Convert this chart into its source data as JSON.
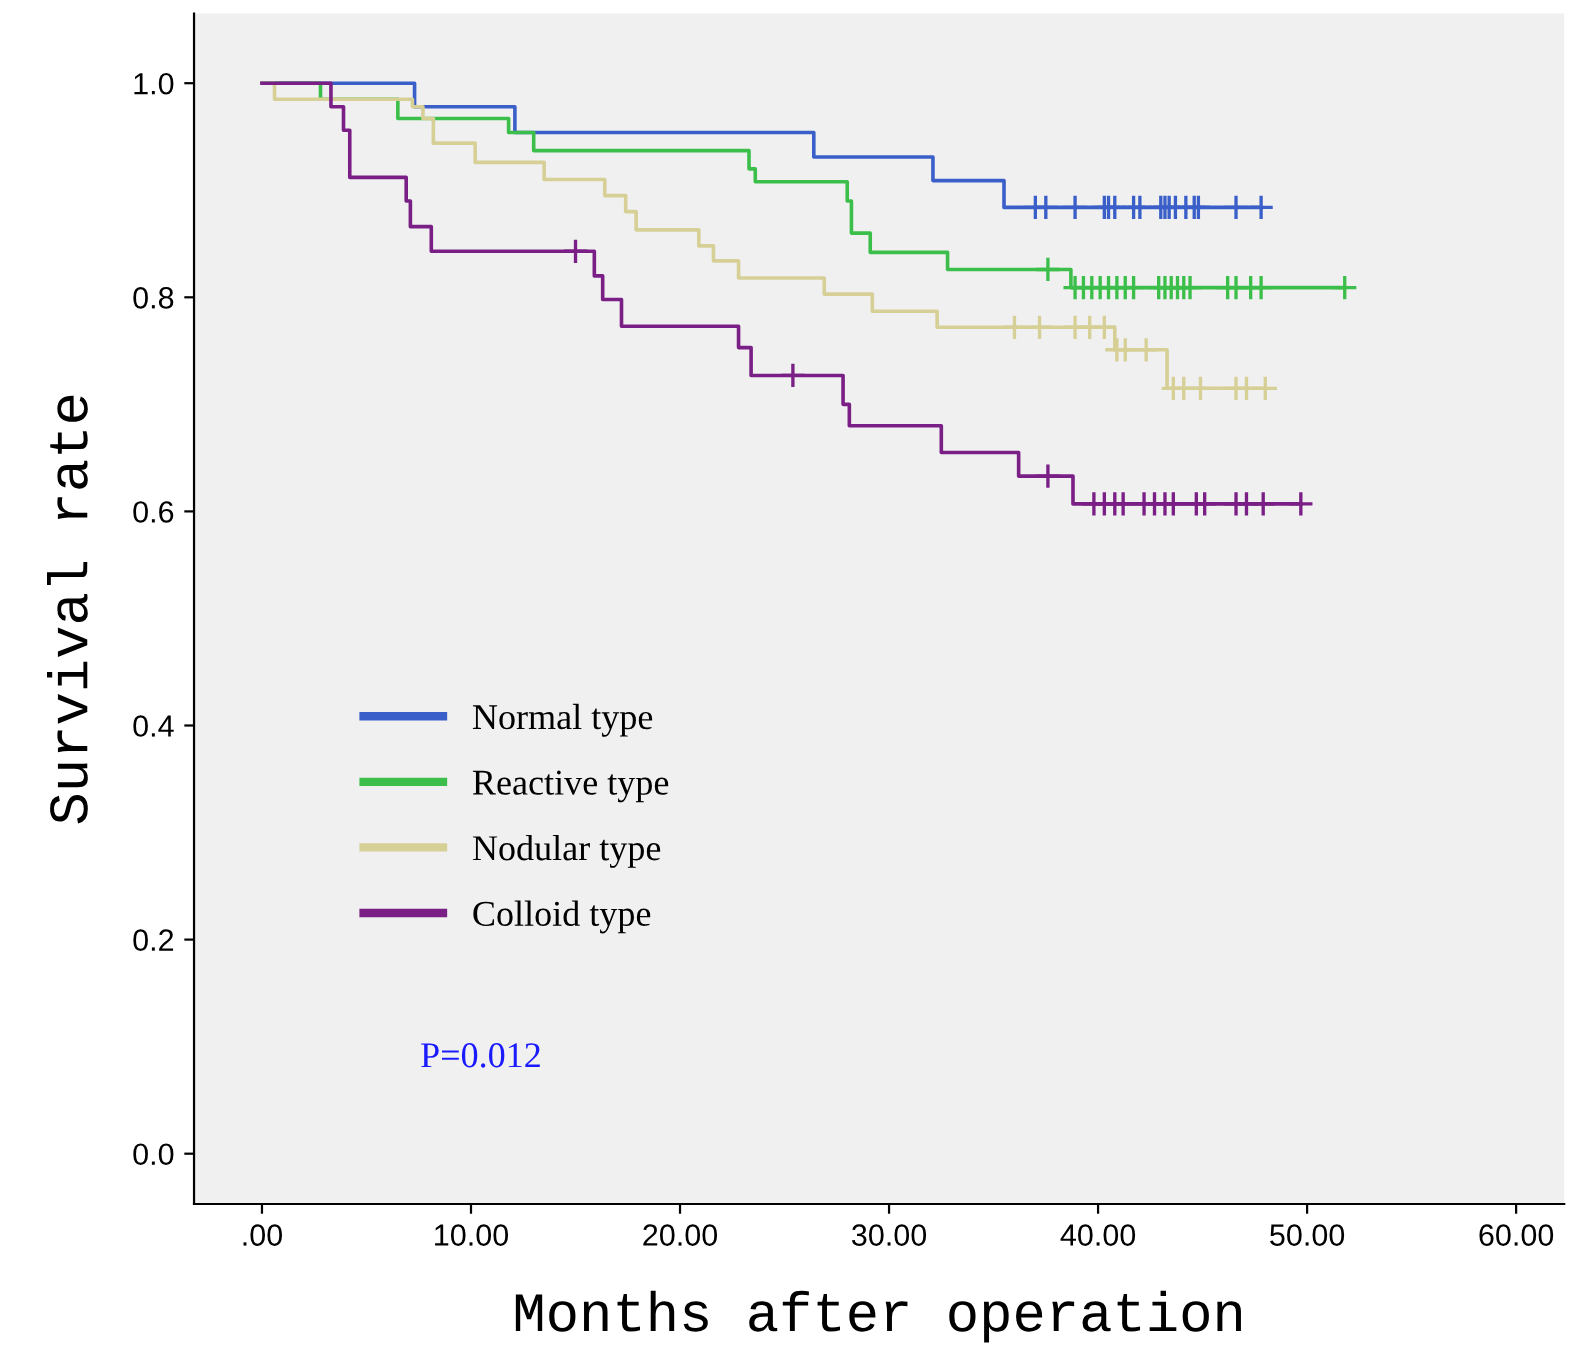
{
  "chart_data": {
    "type": "step",
    "xlabel": "Months after operation",
    "ylabel": "Survival rate",
    "xlim": [
      -3.25,
      62.3
    ],
    "ylim": [
      -0.047,
      1.065
    ],
    "xticks": [
      {
        "value": 0,
        "label": ".00"
      },
      {
        "value": 10,
        "label": "10.00"
      },
      {
        "value": 20,
        "label": "20.00"
      },
      {
        "value": 30,
        "label": "30.00"
      },
      {
        "value": 40,
        "label": "40.00"
      },
      {
        "value": 50,
        "label": "50.00"
      },
      {
        "value": 60,
        "label": "60.00"
      }
    ],
    "yticks": [
      {
        "value": 0,
        "label": "0.0"
      },
      {
        "value": 0.2,
        "label": "0.2"
      },
      {
        "value": 0.4,
        "label": "0.4"
      },
      {
        "value": 0.6,
        "label": "0.6"
      },
      {
        "value": 0.8,
        "label": "0.8"
      },
      {
        "value": 1.0,
        "label": "1.0"
      }
    ],
    "grid": false,
    "legend": "bottom left",
    "marker": "none",
    "line_style": "solid",
    "annotations": [
      "P=0.012"
    ],
    "series": [
      {
        "name": "Normal type",
        "color": "#3a5fc8",
        "x": [
          0,
          7.3,
          12.1,
          26.4,
          32.1,
          35.5,
          47.8
        ],
        "values": [
          1.0,
          0.978,
          0.954,
          0.931,
          0.909,
          0.884,
          0.884
        ]
      },
      {
        "name": "Reactive type",
        "color": "#3cbf4a",
        "x": [
          0,
          2.8,
          6.5,
          11.8,
          13.0,
          23.3,
          23.6,
          28.0,
          28.2,
          29.1,
          32.8,
          38.7,
          51.8
        ],
        "values": [
          1.0,
          0.985,
          0.967,
          0.954,
          0.937,
          0.92,
          0.908,
          0.89,
          0.86,
          0.842,
          0.826,
          0.809,
          0.809
        ]
      },
      {
        "name": "Nodular type",
        "color": "#d6cf96",
        "x": [
          0,
          0.6,
          7.2,
          7.7,
          8.2,
          10.2,
          13.5,
          16.4,
          17.4,
          17.9,
          20.9,
          21.6,
          22.8,
          26.9,
          29.2,
          32.3,
          40.8,
          43.3,
          48.0
        ],
        "values": [
          1.0,
          0.985,
          0.978,
          0.967,
          0.944,
          0.926,
          0.91,
          0.895,
          0.88,
          0.863,
          0.848,
          0.834,
          0.818,
          0.803,
          0.787,
          0.772,
          0.751,
          0.715,
          0.715
        ]
      },
      {
        "name": "Colloid type",
        "color": "#7a1f86",
        "x": [
          0,
          3.3,
          3.9,
          4.2,
          6.9,
          7.1,
          8.1,
          15.9,
          16.3,
          17.2,
          22.8,
          23.4,
          27.8,
          28.1,
          32.5,
          36.2,
          38.8,
          49.7
        ],
        "values": [
          1.0,
          0.978,
          0.956,
          0.912,
          0.89,
          0.866,
          0.843,
          0.82,
          0.798,
          0.773,
          0.753,
          0.727,
          0.7,
          0.68,
          0.655,
          0.633,
          0.607,
          0.607
        ]
      },
      {
        "type": "scatter",
        "marker": "cross",
        "color": "#3a5fc8",
        "x": [
          37.0,
          37.5,
          38.9,
          40.3,
          40.5,
          40.8,
          41.7,
          42.0,
          43.0,
          43.2,
          43.4,
          43.7,
          44.2,
          44.6,
          44.8,
          46.6,
          47.8
        ],
        "values": [
          0.884,
          0.884,
          0.884,
          0.884,
          0.884,
          0.884,
          0.884,
          0.884,
          0.884,
          0.884,
          0.884,
          0.884,
          0.884,
          0.884,
          0.884,
          0.884,
          0.884
        ]
      },
      {
        "type": "scatter",
        "marker": "cross",
        "color": "#3cbf4a",
        "x": [
          37.6,
          38.9,
          39.3,
          39.7,
          40.1,
          40.5,
          40.9,
          41.3,
          41.7,
          42.9,
          43.2,
          43.5,
          43.8,
          44.1,
          44.4,
          46.2,
          46.6,
          47.3,
          47.8,
          51.8
        ],
        "values": [
          0.826,
          0.809,
          0.809,
          0.809,
          0.809,
          0.809,
          0.809,
          0.809,
          0.809,
          0.809,
          0.809,
          0.809,
          0.809,
          0.809,
          0.809,
          0.809,
          0.809,
          0.809,
          0.809,
          0.809
        ]
      },
      {
        "type": "scatter",
        "marker": "cross",
        "color": "#d6cf96",
        "x": [
          36.0,
          37.2,
          38.9,
          39.6,
          40.3,
          40.9,
          41.3,
          42.3,
          43.6,
          44.1,
          44.9,
          46.6,
          47.1,
          48.0
        ],
        "values": [
          0.772,
          0.772,
          0.772,
          0.772,
          0.772,
          0.751,
          0.751,
          0.751,
          0.715,
          0.715,
          0.715,
          0.715,
          0.715,
          0.715
        ]
      },
      {
        "type": "scatter",
        "marker": "cross",
        "color": "#7a1f86",
        "x": [
          15.0,
          25.4,
          37.6,
          39.8,
          40.3,
          40.8,
          41.2,
          42.2,
          42.7,
          43.2,
          43.6,
          44.7,
          45.1,
          46.6,
          47.1,
          47.9,
          49.7
        ],
        "values": [
          0.843,
          0.727,
          0.633,
          0.607,
          0.607,
          0.607,
          0.607,
          0.607,
          0.607,
          0.607,
          0.607,
          0.607,
          0.607,
          0.607,
          0.607,
          0.607,
          0.607
        ]
      }
    ]
  }
}
